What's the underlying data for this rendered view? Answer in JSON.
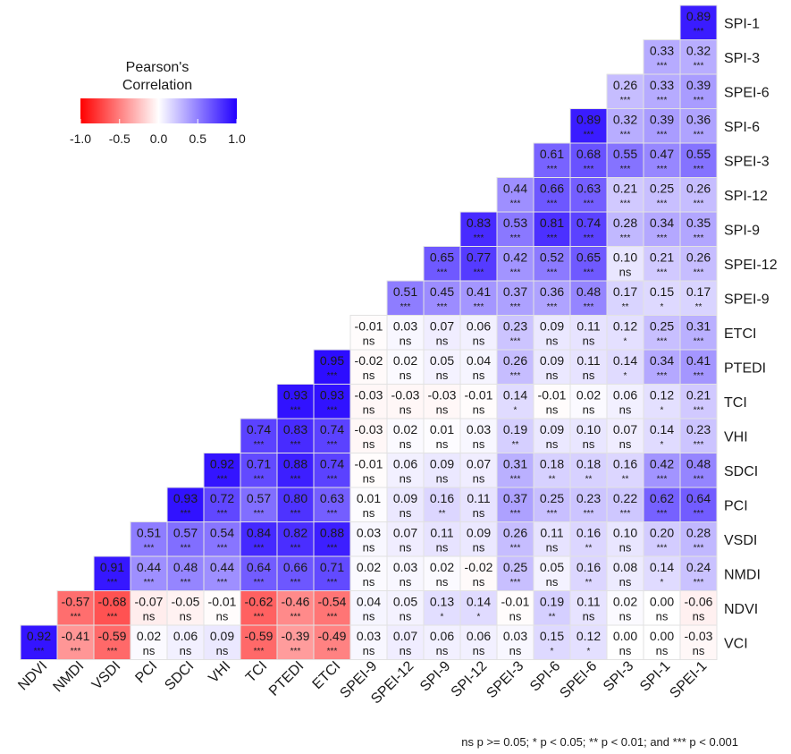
{
  "chart_data": {
    "type": "heatmap",
    "rows": [
      "SPI-1",
      "SPI-3",
      "SPEI-6",
      "SPI-6",
      "SPEI-3",
      "SPI-12",
      "SPI-9",
      "SPEI-12",
      "SPEI-9",
      "ETCI",
      "PTEDI",
      "TCI",
      "VHI",
      "SDCI",
      "PCI",
      "VSDI",
      "NMDI",
      "NDVI",
      "VCI"
    ],
    "columns": [
      "NDVI",
      "NMDI",
      "VSDI",
      "PCI",
      "SDCI",
      "VHI",
      "TCI",
      "PTEDI",
      "ETCI",
      "SPEI-9",
      "SPEI-12",
      "SPI-9",
      "SPI-12",
      "SPEI-3",
      "SPI-6",
      "SPEI-6",
      "SPI-3",
      "SPI-1",
      "SPEI-1"
    ],
    "values": [
      [
        null,
        null,
        null,
        null,
        null,
        null,
        null,
        null,
        null,
        null,
        null,
        null,
        null,
        null,
        null,
        null,
        null,
        null,
        0.89
      ],
      [
        null,
        null,
        null,
        null,
        null,
        null,
        null,
        null,
        null,
        null,
        null,
        null,
        null,
        null,
        null,
        null,
        null,
        0.33,
        0.32
      ],
      [
        null,
        null,
        null,
        null,
        null,
        null,
        null,
        null,
        null,
        null,
        null,
        null,
        null,
        null,
        null,
        null,
        0.26,
        0.33,
        0.39
      ],
      [
        null,
        null,
        null,
        null,
        null,
        null,
        null,
        null,
        null,
        null,
        null,
        null,
        null,
        null,
        null,
        0.89,
        0.32,
        0.39,
        0.36
      ],
      [
        null,
        null,
        null,
        null,
        null,
        null,
        null,
        null,
        null,
        null,
        null,
        null,
        null,
        null,
        0.61,
        0.68,
        0.55,
        0.47,
        0.55
      ],
      [
        null,
        null,
        null,
        null,
        null,
        null,
        null,
        null,
        null,
        null,
        null,
        null,
        null,
        0.44,
        0.66,
        0.63,
        0.21,
        0.25,
        0.26
      ],
      [
        null,
        null,
        null,
        null,
        null,
        null,
        null,
        null,
        null,
        null,
        null,
        null,
        0.83,
        0.53,
        0.81,
        0.74,
        0.28,
        0.34,
        0.35
      ],
      [
        null,
        null,
        null,
        null,
        null,
        null,
        null,
        null,
        null,
        null,
        null,
        0.65,
        0.77,
        0.42,
        0.52,
        0.65,
        0.1,
        0.21,
        0.26
      ],
      [
        null,
        null,
        null,
        null,
        null,
        null,
        null,
        null,
        null,
        null,
        0.51,
        0.45,
        0.41,
        0.37,
        0.36,
        0.48,
        0.17,
        0.15,
        0.17
      ],
      [
        null,
        null,
        null,
        null,
        null,
        null,
        null,
        null,
        null,
        -0.01,
        0.03,
        0.07,
        0.06,
        0.23,
        0.09,
        0.11,
        0.12,
        0.25,
        0.31
      ],
      [
        null,
        null,
        null,
        null,
        null,
        null,
        null,
        null,
        0.95,
        -0.02,
        0.02,
        0.05,
        0.04,
        0.26,
        0.09,
        0.11,
        0.14,
        0.34,
        0.41
      ],
      [
        null,
        null,
        null,
        null,
        null,
        null,
        null,
        0.93,
        0.93,
        -0.03,
        -0.03,
        -0.03,
        -0.01,
        0.14,
        -0.01,
        0.02,
        0.06,
        0.12,
        0.21
      ],
      [
        null,
        null,
        null,
        null,
        null,
        null,
        0.74,
        0.83,
        0.74,
        -0.03,
        0.02,
        0.01,
        0.03,
        0.19,
        0.09,
        0.1,
        0.07,
        0.14,
        0.23
      ],
      [
        null,
        null,
        null,
        null,
        null,
        0.92,
        0.71,
        0.88,
        0.74,
        -0.01,
        0.06,
        0.09,
        0.07,
        0.31,
        0.18,
        0.18,
        0.16,
        0.42,
        0.48
      ],
      [
        null,
        null,
        null,
        null,
        0.93,
        0.72,
        0.57,
        0.8,
        0.63,
        0.01,
        0.09,
        0.16,
        0.11,
        0.37,
        0.25,
        0.23,
        0.22,
        0.62,
        0.64
      ],
      [
        null,
        null,
        null,
        0.51,
        0.57,
        0.54,
        0.84,
        0.82,
        0.88,
        0.03,
        0.07,
        0.11,
        0.09,
        0.26,
        0.11,
        0.16,
        0.1,
        0.2,
        0.28
      ],
      [
        null,
        null,
        0.91,
        0.44,
        0.48,
        0.44,
        0.64,
        0.66,
        0.71,
        0.02,
        0.03,
        0.02,
        -0.02,
        0.25,
        0.05,
        0.16,
        0.08,
        0.14,
        0.24
      ],
      [
        null,
        -0.57,
        -0.68,
        -0.07,
        -0.05,
        -0.01,
        -0.62,
        -0.46,
        -0.54,
        0.04,
        0.05,
        0.13,
        0.14,
        -0.01,
        0.19,
        0.11,
        0.02,
        0.0,
        -0.06
      ],
      [
        0.92,
        -0.41,
        -0.59,
        0.02,
        0.06,
        0.09,
        -0.59,
        -0.39,
        -0.49,
        0.03,
        0.07,
        0.06,
        0.06,
        0.03,
        0.15,
        0.12,
        0.0,
        0.0,
        -0.03
      ]
    ],
    "significance": [
      [
        null,
        null,
        null,
        null,
        null,
        null,
        null,
        null,
        null,
        null,
        null,
        null,
        null,
        null,
        null,
        null,
        null,
        null,
        "***"
      ],
      [
        null,
        null,
        null,
        null,
        null,
        null,
        null,
        null,
        null,
        null,
        null,
        null,
        null,
        null,
        null,
        null,
        null,
        "***",
        "***"
      ],
      [
        null,
        null,
        null,
        null,
        null,
        null,
        null,
        null,
        null,
        null,
        null,
        null,
        null,
        null,
        null,
        null,
        "***",
        "***",
        "***"
      ],
      [
        null,
        null,
        null,
        null,
        null,
        null,
        null,
        null,
        null,
        null,
        null,
        null,
        null,
        null,
        null,
        "***",
        "***",
        "***",
        "***"
      ],
      [
        null,
        null,
        null,
        null,
        null,
        null,
        null,
        null,
        null,
        null,
        null,
        null,
        null,
        null,
        "***",
        "***",
        "***",
        "***",
        "***"
      ],
      [
        null,
        null,
        null,
        null,
        null,
        null,
        null,
        null,
        null,
        null,
        null,
        null,
        null,
        "***",
        "***",
        "***",
        "***",
        "***",
        "***"
      ],
      [
        null,
        null,
        null,
        null,
        null,
        null,
        null,
        null,
        null,
        null,
        null,
        null,
        "***",
        "***",
        "***",
        "***",
        "***",
        "***",
        "***"
      ],
      [
        null,
        null,
        null,
        null,
        null,
        null,
        null,
        null,
        null,
        null,
        null,
        "***",
        "***",
        "***",
        "***",
        "***",
        "ns",
        "***",
        "***"
      ],
      [
        null,
        null,
        null,
        null,
        null,
        null,
        null,
        null,
        null,
        null,
        "***",
        "***",
        "***",
        "***",
        "***",
        "***",
        "**",
        "*",
        "**"
      ],
      [
        null,
        null,
        null,
        null,
        null,
        null,
        null,
        null,
        null,
        "ns",
        "ns",
        "ns",
        "ns",
        "***",
        "ns",
        "ns",
        "*",
        "***",
        "***"
      ],
      [
        null,
        null,
        null,
        null,
        null,
        null,
        null,
        null,
        "***",
        "ns",
        "ns",
        "ns",
        "ns",
        "***",
        "ns",
        "ns",
        "*",
        "***",
        "***"
      ],
      [
        null,
        null,
        null,
        null,
        null,
        null,
        null,
        "***",
        "***",
        "ns",
        "ns",
        "ns",
        "ns",
        "*",
        "ns",
        "ns",
        "ns",
        "*",
        "***"
      ],
      [
        null,
        null,
        null,
        null,
        null,
        null,
        "***",
        "***",
        "***",
        "ns",
        "ns",
        "ns",
        "ns",
        "**",
        "ns",
        "ns",
        "ns",
        "*",
        "***"
      ],
      [
        null,
        null,
        null,
        null,
        null,
        "***",
        "***",
        "***",
        "***",
        "ns",
        "ns",
        "ns",
        "ns",
        "***",
        "**",
        "**",
        "**",
        "***",
        "***"
      ],
      [
        null,
        null,
        null,
        null,
        "***",
        "***",
        "***",
        "***",
        "***",
        "ns",
        "ns",
        "**",
        "ns",
        "***",
        "***",
        "***",
        "***",
        "***",
        "***"
      ],
      [
        null,
        null,
        null,
        "***",
        "***",
        "***",
        "***",
        "***",
        "***",
        "ns",
        "ns",
        "ns",
        "ns",
        "***",
        "ns",
        "**",
        "ns",
        "***",
        "***"
      ],
      [
        null,
        null,
        "***",
        "***",
        "***",
        "***",
        "***",
        "***",
        "***",
        "ns",
        "ns",
        "ns",
        "ns",
        "***",
        "ns",
        "**",
        "ns",
        "*",
        "***"
      ],
      [
        null,
        "***",
        "***",
        "ns",
        "ns",
        "ns",
        "***",
        "***",
        "***",
        "ns",
        "ns",
        "*",
        "*",
        "ns",
        "**",
        "ns",
        "ns",
        "ns",
        "ns"
      ],
      [
        "***",
        "***",
        "***",
        "ns",
        "ns",
        "ns",
        "***",
        "***",
        "***",
        "ns",
        "ns",
        "ns",
        "ns",
        "ns",
        "*",
        "*",
        "ns",
        "ns",
        "ns"
      ]
    ],
    "legend": {
      "title_line1": "Pearson's",
      "title_line2": "Correlation",
      "ticks": [
        "-1.0",
        "-0.5",
        "0.0",
        "0.5",
        "1.0"
      ],
      "range": [
        -1,
        1
      ],
      "low_color": "#ff0000",
      "mid_color": "#ffffff",
      "high_color": "#2200ff"
    },
    "note": "ns p >= 0.05; * p < 0.05; ** p < 0.01; and *** p < 0.001"
  }
}
